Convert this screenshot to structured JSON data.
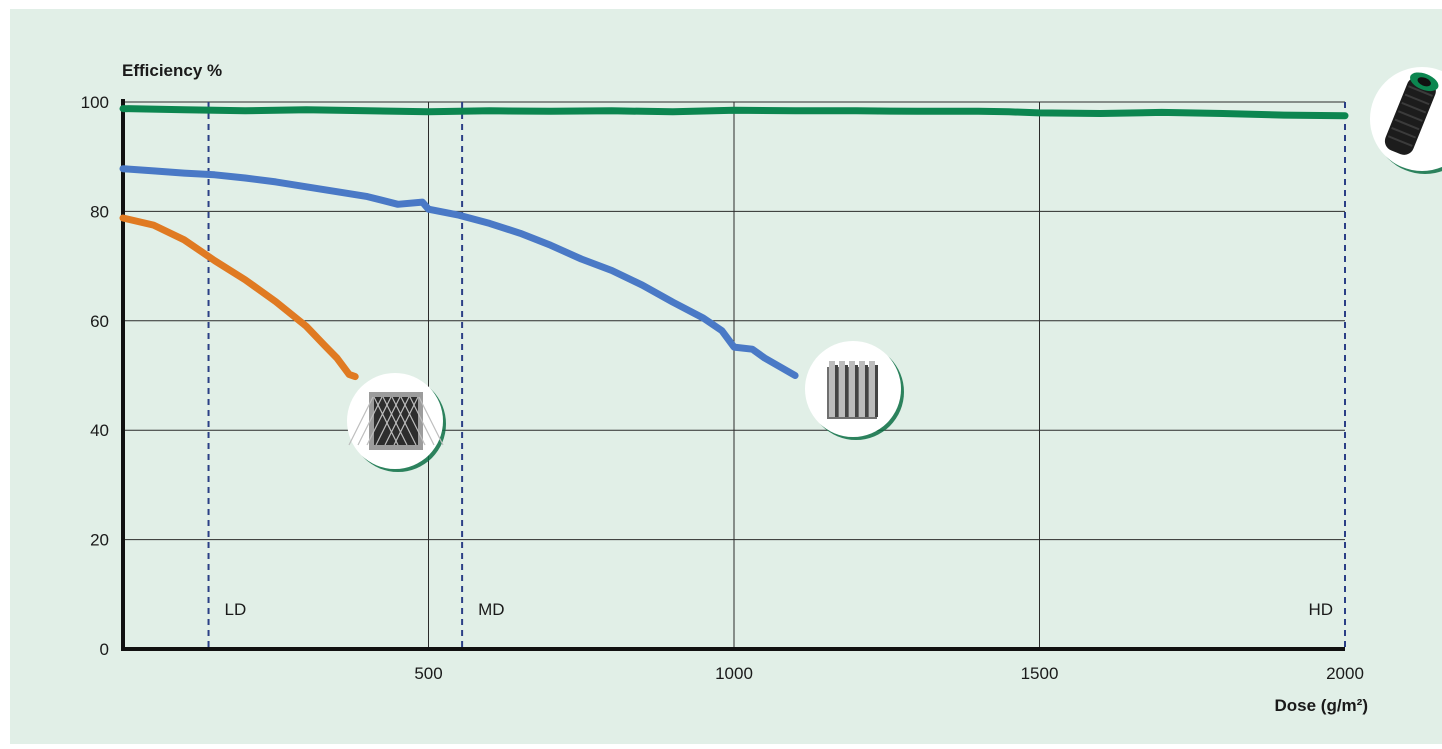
{
  "chart_data": {
    "type": "line",
    "xlabel": "Dose (g/m²)",
    "ylabel": "Efficiency %",
    "xlim": [
      0,
      2000
    ],
    "ylim": [
      0,
      100
    ],
    "x_ticks": [
      "500",
      "1000",
      "1500",
      "2000"
    ],
    "y_ticks": [
      "0",
      "20",
      "40",
      "60",
      "80",
      "100"
    ],
    "grid": true,
    "colors": {
      "green": "#0c8650",
      "blue": "#4a79c6",
      "orange": "#e07a22",
      "background": "#e1efe7"
    },
    "series": [
      {
        "color": "#0c8650",
        "icon": "cylindrical-filter-icon",
        "points": [
          [
            0,
            98.8
          ],
          [
            100,
            98.6
          ],
          [
            200,
            98.4
          ],
          [
            300,
            98.6
          ],
          [
            400,
            98.4
          ],
          [
            500,
            98.2
          ],
          [
            600,
            98.4
          ],
          [
            700,
            98.3
          ],
          [
            800,
            98.4
          ],
          [
            900,
            98.2
          ],
          [
            1000,
            98.5
          ],
          [
            1100,
            98.4
          ],
          [
            1200,
            98.4
          ],
          [
            1300,
            98.3
          ],
          [
            1400,
            98.3
          ],
          [
            1450,
            98.2
          ],
          [
            1500,
            98.0
          ],
          [
            1600,
            97.9
          ],
          [
            1700,
            98.1
          ],
          [
            1800,
            97.9
          ],
          [
            1900,
            97.6
          ],
          [
            2000,
            97.5
          ]
        ]
      },
      {
        "color": "#4a79c6",
        "icon": "v-bank-filter-icon",
        "points": [
          [
            0,
            87.8
          ],
          [
            50,
            87.4
          ],
          [
            100,
            87.0
          ],
          [
            150,
            86.7
          ],
          [
            200,
            86.1
          ],
          [
            250,
            85.4
          ],
          [
            300,
            84.5
          ],
          [
            350,
            83.6
          ],
          [
            400,
            82.7
          ],
          [
            450,
            81.3
          ],
          [
            490,
            81.7
          ],
          [
            500,
            80.4
          ],
          [
            550,
            79.3
          ],
          [
            600,
            77.8
          ],
          [
            650,
            76.0
          ],
          [
            700,
            73.8
          ],
          [
            750,
            71.3
          ],
          [
            800,
            69.2
          ],
          [
            850,
            66.5
          ],
          [
            900,
            63.4
          ],
          [
            950,
            60.5
          ],
          [
            980,
            58.2
          ],
          [
            1000,
            55.2
          ],
          [
            1030,
            54.8
          ],
          [
            1050,
            53.2
          ],
          [
            1100,
            50.0
          ]
        ]
      },
      {
        "color": "#e07a22",
        "icon": "pleated-panel-filter-icon",
        "points": [
          [
            0,
            78.8
          ],
          [
            50,
            77.5
          ],
          [
            100,
            74.8
          ],
          [
            150,
            71.0
          ],
          [
            200,
            67.5
          ],
          [
            250,
            63.5
          ],
          [
            300,
            59.0
          ],
          [
            330,
            55.5
          ],
          [
            350,
            53.2
          ],
          [
            370,
            50.2
          ],
          [
            380,
            49.8
          ]
        ]
      }
    ],
    "reference_lines": [
      {
        "label": "LD",
        "x": 140
      },
      {
        "label": "MD",
        "x": 555
      },
      {
        "label": "HD",
        "x": 2000
      }
    ]
  }
}
